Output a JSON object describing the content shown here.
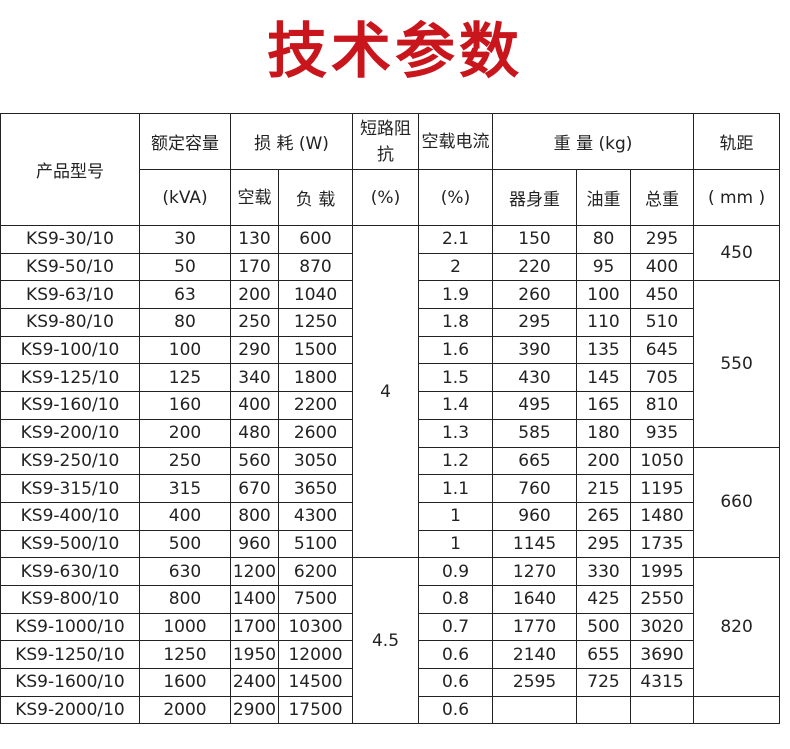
{
  "title": "技术参数",
  "header": {
    "model": "产品型号",
    "capacity": "额定容量",
    "capacity_unit": "(kVA)",
    "loss": "损 耗 (W)",
    "loss_noload": "空载",
    "loss_load": "负 载",
    "impedance": "短路阻抗",
    "impedance_unit": "(%)",
    "noload_current": "空载电流",
    "current_unit": "(%)",
    "weight": "重 量 (kg)",
    "weight_body": "器身重",
    "weight_oil": "油重",
    "weight_total": "总重",
    "gauge": "轨距",
    "gauge_unit": "( mm )"
  },
  "rows": [
    {
      "model": "KS9-30/10",
      "kva": "30",
      "p0": "130",
      "pk": "600",
      "i0": "2.1",
      "body": "150",
      "oil": "80",
      "total": "295"
    },
    {
      "model": "KS9-50/10",
      "kva": "50",
      "p0": "170",
      "pk": "870",
      "i0": "2",
      "body": "220",
      "oil": "95",
      "total": "400"
    },
    {
      "model": "KS9-63/10",
      "kva": "63",
      "p0": "200",
      "pk": "1040",
      "i0": "1.9",
      "body": "260",
      "oil": "100",
      "total": "450"
    },
    {
      "model": "KS9-80/10",
      "kva": "80",
      "p0": "250",
      "pk": "1250",
      "i0": "1.8",
      "body": "295",
      "oil": "110",
      "total": "510"
    },
    {
      "model": "KS9-100/10",
      "kva": "100",
      "p0": "290",
      "pk": "1500",
      "i0": "1.6",
      "body": "390",
      "oil": "135",
      "total": "645"
    },
    {
      "model": "KS9-125/10",
      "kva": "125",
      "p0": "340",
      "pk": "1800",
      "i0": "1.5",
      "body": "430",
      "oil": "145",
      "total": "705"
    },
    {
      "model": "KS9-160/10",
      "kva": "160",
      "p0": "400",
      "pk": "2200",
      "i0": "1.4",
      "body": "495",
      "oil": "165",
      "total": "810"
    },
    {
      "model": "KS9-200/10",
      "kva": "200",
      "p0": "480",
      "pk": "2600",
      "i0": "1.3",
      "body": "585",
      "oil": "180",
      "total": "935"
    },
    {
      "model": "KS9-250/10",
      "kva": "250",
      "p0": "560",
      "pk": "3050",
      "i0": "1.2",
      "body": "665",
      "oil": "200",
      "total": "1050"
    },
    {
      "model": "KS9-315/10",
      "kva": "315",
      "p0": "670",
      "pk": "3650",
      "i0": "1.1",
      "body": "760",
      "oil": "215",
      "total": "1195"
    },
    {
      "model": "KS9-400/10",
      "kva": "400",
      "p0": "800",
      "pk": "4300",
      "i0": "1",
      "body": "960",
      "oil": "265",
      "total": "1480"
    },
    {
      "model": "KS9-500/10",
      "kva": "500",
      "p0": "960",
      "pk": "5100",
      "i0": "1",
      "body": "1145",
      "oil": "295",
      "total": "1735"
    },
    {
      "model": "KS9-630/10",
      "kva": "630",
      "p0": "1200",
      "pk": "6200",
      "i0": "0.9",
      "body": "1270",
      "oil": "330",
      "total": "1995"
    },
    {
      "model": "KS9-800/10",
      "kva": "800",
      "p0": "1400",
      "pk": "7500",
      "i0": "0.8",
      "body": "1640",
      "oil": "425",
      "total": "2550"
    },
    {
      "model": "KS9-1000/10",
      "kva": "1000",
      "p0": "1700",
      "pk": "10300",
      "i0": "0.7",
      "body": "1770",
      "oil": "500",
      "total": "3020"
    },
    {
      "model": "KS9-1250/10",
      "kva": "1250",
      "p0": "1950",
      "pk": "12000",
      "i0": "0.6",
      "body": "2140",
      "oil": "655",
      "total": "3690"
    },
    {
      "model": "KS9-1600/10",
      "kva": "1600",
      "p0": "2400",
      "pk": "14500",
      "i0": "0.6",
      "body": "2595",
      "oil": "725",
      "total": "4315"
    },
    {
      "model": "KS9-2000/10",
      "kva": "2000",
      "p0": "2900",
      "pk": "17500",
      "i0": "0.6",
      "body": "",
      "oil": "",
      "total": ""
    }
  ],
  "impedance_groups": [
    {
      "value": "4",
      "rows": 12
    },
    {
      "value": "4.5",
      "rows": 6
    }
  ],
  "gauge_groups": [
    {
      "value": "450",
      "rows": 2
    },
    {
      "value": "550",
      "rows": 6
    },
    {
      "value": "660",
      "rows": 4
    },
    {
      "value": "820",
      "rows": 5
    },
    {
      "value": "",
      "rows": 1
    }
  ],
  "colors": {
    "title": "#c9161d",
    "border": "#222222"
  }
}
